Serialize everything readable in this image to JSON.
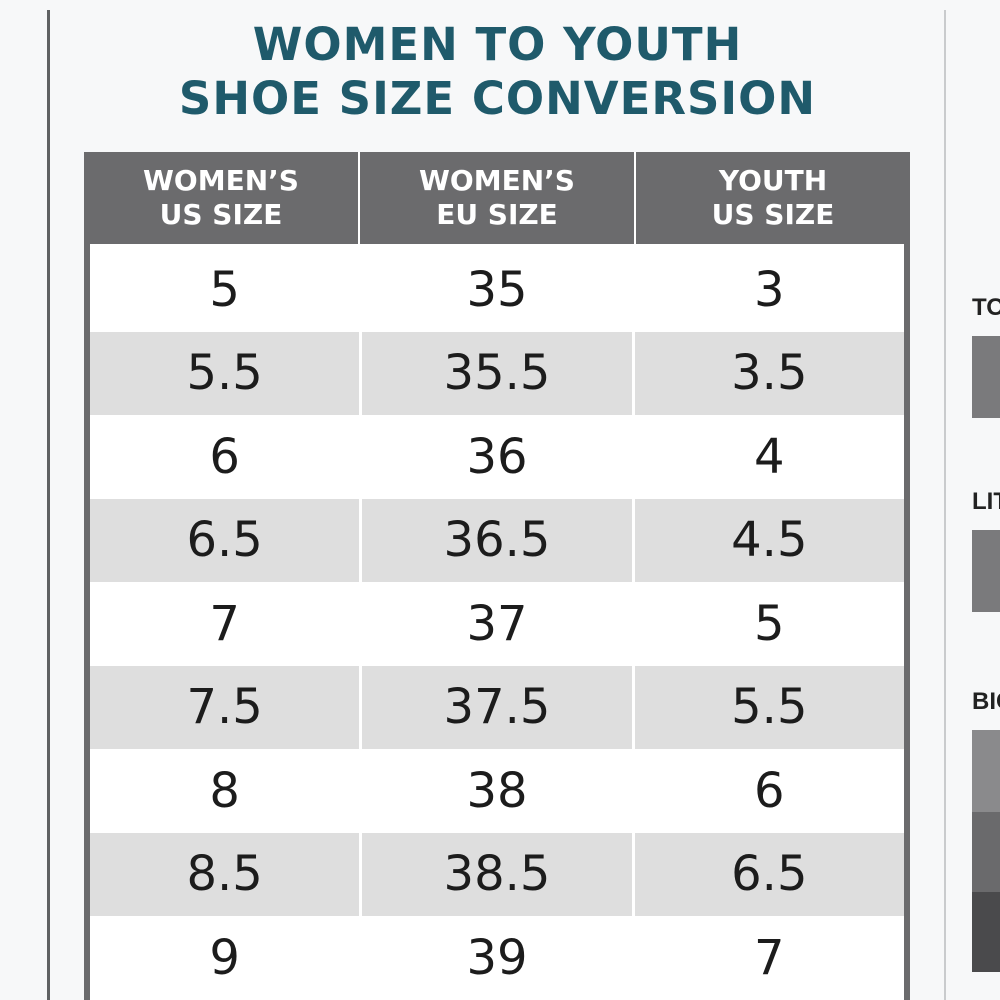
{
  "title": {
    "line1": "WOMEN TO YOUTH",
    "line2": "SHOE SIZE CONVERSION"
  },
  "table": {
    "headers": [
      {
        "line1": "WOMEN’S",
        "line2": "US SIZE"
      },
      {
        "line1": "WOMEN’S",
        "line2": "EU SIZE"
      },
      {
        "line1": "YOUTH",
        "line2": "US SIZE"
      }
    ],
    "rows": [
      [
        "5",
        "35",
        "3"
      ],
      [
        "5.5",
        "35.5",
        "3.5"
      ],
      [
        "6",
        "36",
        "4"
      ],
      [
        "6.5",
        "36.5",
        "4.5"
      ],
      [
        "7",
        "37",
        "5"
      ],
      [
        "7.5",
        "37.5",
        "5.5"
      ],
      [
        "8",
        "38",
        "6"
      ],
      [
        "8.5",
        "38.5",
        "6.5"
      ],
      [
        "9",
        "39",
        "7"
      ]
    ]
  },
  "side_chart": {
    "labels": [
      "TO",
      "LIT",
      "BIG"
    ]
  },
  "colors": {
    "title": "#1f5a6b",
    "header_bg": "#6b6b6d",
    "row_shade": "#dedede"
  }
}
